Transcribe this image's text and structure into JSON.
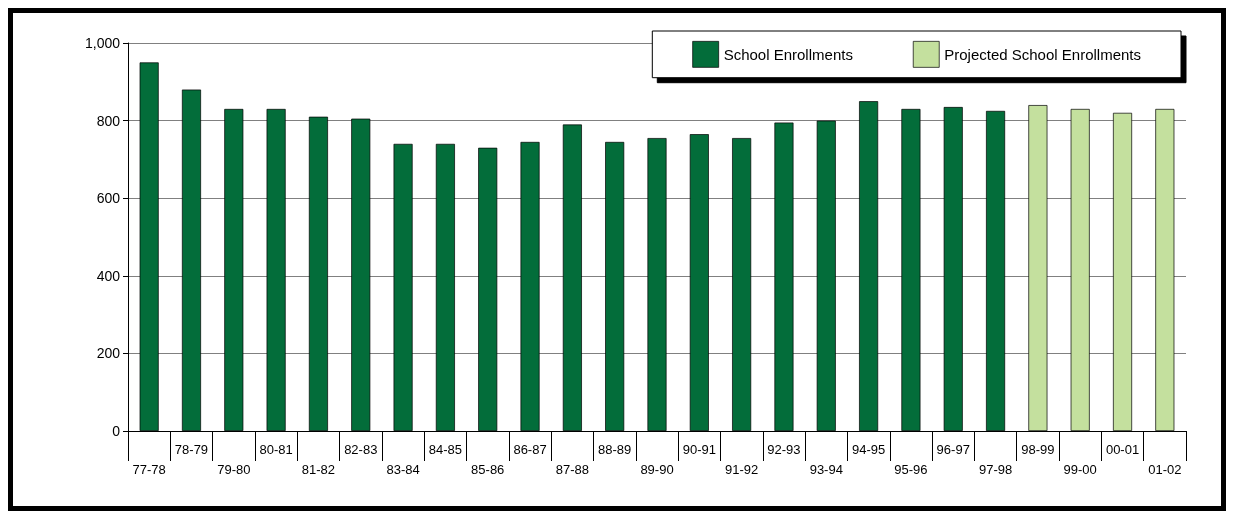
{
  "chart_data": {
    "type": "bar",
    "categories": [
      "77-78",
      "78-79",
      "79-80",
      "80-81",
      "81-82",
      "82-83",
      "83-84",
      "84-85",
      "85-86",
      "86-87",
      "87-88",
      "88-89",
      "89-90",
      "90-91",
      "91-92",
      "92-93",
      "93-94",
      "94-95",
      "95-96",
      "96-97",
      "97-98",
      "98-99",
      "99-00",
      "00-01",
      "01-02"
    ],
    "series": [
      {
        "name": "School Enrollments",
        "color": "#036d3a",
        "values": [
          950,
          880,
          830,
          830,
          810,
          805,
          740,
          740,
          730,
          745,
          790,
          745,
          755,
          765,
          755,
          795,
          800,
          850,
          830,
          835,
          825,
          null,
          null,
          null,
          null
        ]
      },
      {
        "name": "Projected School Enrollments",
        "color": "#c4e09e",
        "values": [
          null,
          null,
          null,
          null,
          null,
          null,
          null,
          null,
          null,
          null,
          null,
          null,
          null,
          null,
          null,
          null,
          null,
          null,
          null,
          null,
          null,
          840,
          830,
          820,
          830
        ]
      }
    ],
    "ylim": [
      0,
      1000
    ],
    "yticks": [
      0,
      200,
      400,
      600,
      800,
      {
        "value": 1000,
        "label": "1,000"
      }
    ],
    "grid": "y",
    "legend": "top right"
  }
}
